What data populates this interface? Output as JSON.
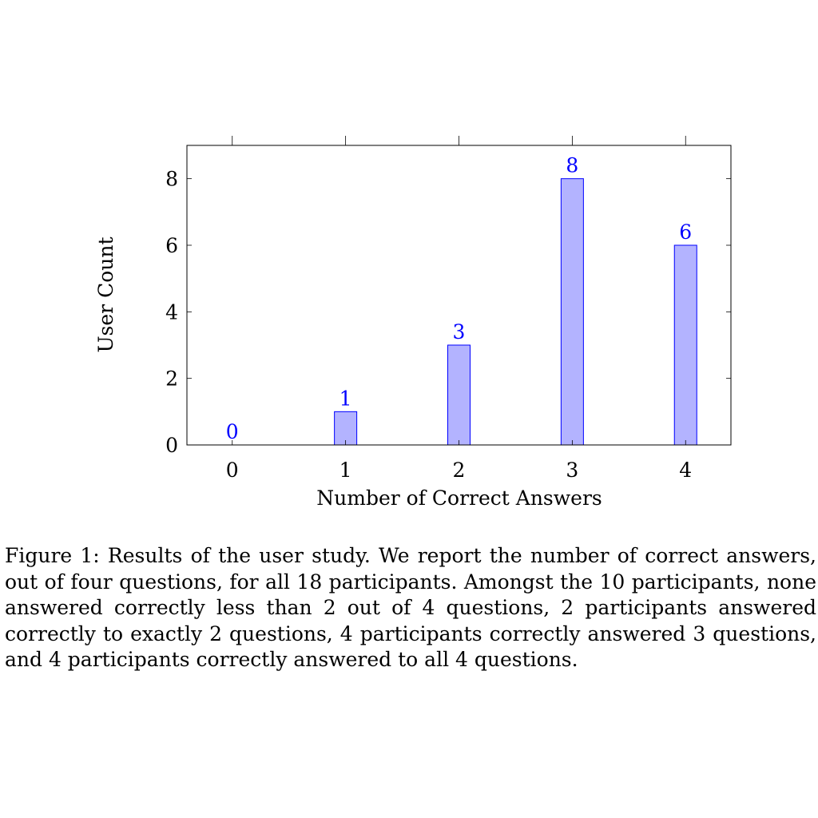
{
  "chart_data": {
    "type": "bar",
    "categories": [
      "0",
      "1",
      "2",
      "3",
      "4"
    ],
    "x": [
      0,
      1,
      2,
      3,
      4
    ],
    "values": [
      0,
      1,
      3,
      8,
      6
    ],
    "data_labels": [
      "0",
      "1",
      "3",
      "8",
      "6"
    ],
    "xlabel": "Number of Correct Answers",
    "ylabel": "User Count",
    "xlim": [
      -0.4,
      4.4
    ],
    "ylim": [
      0,
      9
    ],
    "yticks": [
      0,
      2,
      4,
      6,
      8
    ],
    "grid": false,
    "legend": "none",
    "colors": {
      "bar_fill": "#b3b3ff",
      "bar_stroke": "#0000ff",
      "data_label": "#0000ff",
      "axis": "#000000"
    }
  },
  "caption": "Figure 1: Results of the user study. We report the number of correct answers, out of four questions, for all 18 participants. Amongst the 10 participants, none answered correctly less than 2 out of 4 questions, 2 participants answered correctly to exactly 2 questions, 4 participants correctly answered 3 questions, and 4 participants correctly answered to all 4 questions."
}
